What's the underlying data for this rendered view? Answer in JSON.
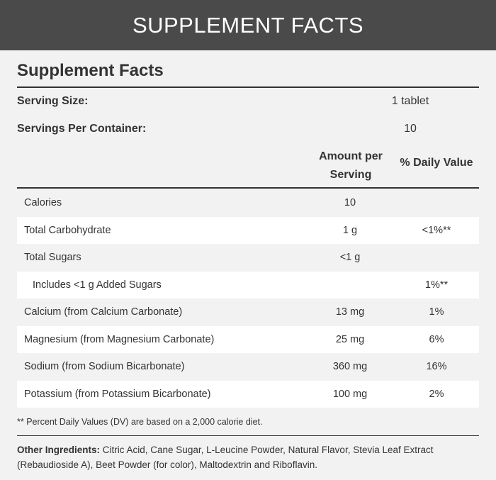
{
  "banner": {
    "title": "SUPPLEMENT FACTS"
  },
  "panel": {
    "heading": "Supplement Facts",
    "serving_size_label": "Serving Size:",
    "serving_size_value": "1 tablet",
    "servings_label": "Servings Per Container:",
    "servings_value": "10",
    "col_amount_line1": "Amount per",
    "col_amount_line2": "Serving",
    "col_dv": "% Daily Value"
  },
  "rows": [
    {
      "name": "Calories",
      "amount": "10",
      "dv": ""
    },
    {
      "name": "Total Carbohydrate",
      "amount": "1 g",
      "dv": "<1%**"
    },
    {
      "name": "Total Sugars",
      "amount": "<1 g",
      "dv": ""
    },
    {
      "name": "Includes <1 g Added Sugars",
      "amount": "",
      "dv": "1%**"
    },
    {
      "name": "Calcium (from Calcium Carbonate)",
      "amount": "13 mg",
      "dv": "1%"
    },
    {
      "name": "Magnesium (from Magnesium Carbonate)",
      "amount": "25 mg",
      "dv": "6%"
    },
    {
      "name": "Sodium (from Sodium Bicarbonate)",
      "amount": "360 mg",
      "dv": "16%"
    },
    {
      "name": "Potassium (from Potassium Bicarbonate)",
      "amount": "100 mg",
      "dv": "2%"
    }
  ],
  "footnote": "** Percent Daily Values (DV) are based on a 2,000 calorie diet.",
  "ingredients": {
    "label": "Other Ingredients:",
    "text": " Citric Acid, Cane Sugar, L-Leucine Powder, Natural Flavor, Stevia Leaf Extract (Rebaudioside A), Beet Powder (for color), Maltodextrin and Riboflavin."
  },
  "colors": {
    "banner_bg": "#4a4a4a",
    "page_bg": "#f2f2f2",
    "row_alt_bg": "#ffffff",
    "text": "#333333"
  }
}
